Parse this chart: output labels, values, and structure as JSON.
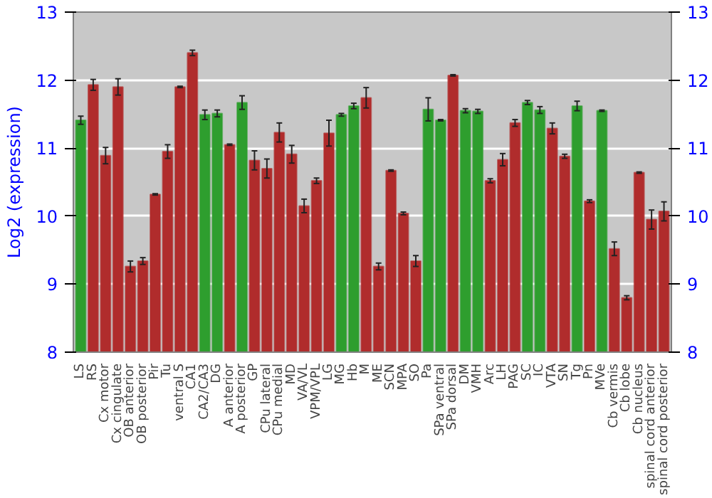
{
  "chart_data": {
    "type": "bar",
    "ylabel": "Log2 (expression)",
    "categories": [
      "LS",
      "RS",
      "Cx motor",
      "Cx cingulate",
      "OB anterior",
      "OB posterior",
      "Pir",
      "Tu",
      "ventral S",
      "CA1",
      "CA2/CA3",
      "DG",
      "A anterior",
      "A posterior",
      "GP",
      "CPu lateral",
      "CPu medial",
      "MD",
      "VA/VL",
      "VPM/VPL",
      "LG",
      "MG",
      "Hb",
      "M",
      "ME",
      "SCN",
      "MPA",
      "SO",
      "Pa",
      "SPa ventral",
      "SPa dorsal",
      "DM",
      "VMH",
      "Arc",
      "LH",
      "PAG",
      "SC",
      "IC",
      "VTA",
      "SN",
      "Tg",
      "Pn",
      "MVe",
      "Cb vermis",
      "Cb lobe",
      "Cb nucleus",
      "spinal cord anterior",
      "spinal cord posterior"
    ],
    "values": [
      11.41,
      11.93,
      10.89,
      11.9,
      9.26,
      9.34,
      10.32,
      10.95,
      11.9,
      12.4,
      11.49,
      11.51,
      11.05,
      11.67,
      10.82,
      10.7,
      11.23,
      10.91,
      10.15,
      10.52,
      11.22,
      11.49,
      11.62,
      11.74,
      9.26,
      10.67,
      10.04,
      9.34,
      11.57,
      11.41,
      12.07,
      11.55,
      11.54,
      10.52,
      10.83,
      11.37,
      11.67,
      11.56,
      11.29,
      10.88,
      11.62,
      10.22,
      11.55,
      9.52,
      8.8,
      10.64,
      9.95,
      10.07
    ],
    "errors": [
      0.06,
      0.08,
      0.12,
      0.12,
      0.08,
      0.05,
      0.01,
      0.1,
      0.01,
      0.04,
      0.07,
      0.05,
      0.01,
      0.1,
      0.14,
      0.14,
      0.14,
      0.13,
      0.1,
      0.04,
      0.19,
      0.02,
      0.04,
      0.15,
      0.05,
      0.01,
      0.02,
      0.08,
      0.17,
      0.01,
      0.01,
      0.03,
      0.03,
      0.03,
      0.09,
      0.05,
      0.03,
      0.05,
      0.08,
      0.03,
      0.07,
      0.02,
      0.01,
      0.1,
      0.03,
      0.01,
      0.14,
      0.14
    ],
    "colors": [
      "#2e9e2e",
      "#b02c2c",
      "#b02c2c",
      "#b02c2c",
      "#b02c2c",
      "#b02c2c",
      "#b02c2c",
      "#b02c2c",
      "#b02c2c",
      "#b02c2c",
      "#2e9e2e",
      "#2e9e2e",
      "#b02c2c",
      "#2e9e2e",
      "#b02c2c",
      "#b02c2c",
      "#b02c2c",
      "#b02c2c",
      "#b02c2c",
      "#b02c2c",
      "#b02c2c",
      "#2e9e2e",
      "#2e9e2e",
      "#b02c2c",
      "#b02c2c",
      "#b02c2c",
      "#b02c2c",
      "#b02c2c",
      "#2e9e2e",
      "#2e9e2e",
      "#b02c2c",
      "#2e9e2e",
      "#2e9e2e",
      "#b02c2c",
      "#b02c2c",
      "#b02c2c",
      "#2e9e2e",
      "#2e9e2e",
      "#b02c2c",
      "#b02c2c",
      "#2e9e2e",
      "#b02c2c",
      "#2e9e2e",
      "#b02c2c",
      "#b02c2c",
      "#b02c2c",
      "#b02c2c",
      "#b02c2c"
    ],
    "ylim": [
      8,
      13
    ],
    "yticks": [
      8,
      9,
      10,
      11,
      12,
      13
    ],
    "y2lim": [
      8,
      13
    ],
    "y2ticks": [
      8,
      9,
      10,
      11,
      12,
      13
    ],
    "grid": "y"
  }
}
